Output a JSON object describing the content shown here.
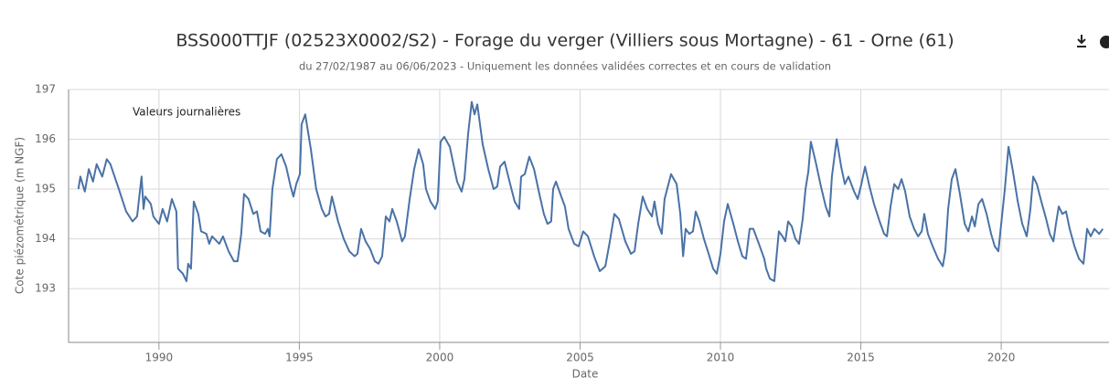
{
  "chart_data": {
    "type": "line",
    "title": "BSS000TTJF (02523X0002/S2) - Forage du verger (Villiers sous Mortagne) - 61 - Orne (61)",
    "subtitle": "du 27/02/1987 au 06/06/2023 - Uniquement les données validées correctes et en cours de validation",
    "annotation": "Valeurs journalières",
    "ylabel": "Cote piézométrique (m NGF)",
    "xlabel": "Date",
    "xlim": [
      1986.78,
      2023.84
    ],
    "xticks": [
      1990,
      1995,
      2000,
      2005,
      2010,
      2015,
      2020
    ],
    "ylim": [
      191.92,
      197
    ],
    "yticks": [
      193,
      194,
      195,
      196,
      197
    ],
    "grid": true,
    "series": [
      {
        "name": "Valeurs journalières",
        "color": "#4a72a6",
        "x": [
          1987.13,
          1987.2,
          1987.36,
          1987.5,
          1987.65,
          1987.78,
          1987.98,
          1988.14,
          1988.27,
          1988.57,
          1988.83,
          1989.06,
          1989.22,
          1989.38,
          1989.45,
          1989.51,
          1989.71,
          1989.8,
          1990.0,
          1990.13,
          1990.29,
          1990.46,
          1990.62,
          1990.68,
          1990.85,
          1990.98,
          1991.04,
          1991.14,
          1991.24,
          1991.4,
          1991.5,
          1991.69,
          1991.79,
          1991.89,
          1992.15,
          1992.28,
          1992.48,
          1992.67,
          1992.8,
          1992.93,
          1993.03,
          1993.19,
          1993.36,
          1993.49,
          1993.62,
          1993.78,
          1993.88,
          1993.94,
          1994.04,
          1994.2,
          1994.36,
          1994.53,
          1994.69,
          1994.79,
          1994.89,
          1995.02,
          1995.08,
          1995.21,
          1995.41,
          1995.6,
          1995.8,
          1995.93,
          1996.06,
          1996.16,
          1996.38,
          1996.58,
          1996.78,
          1996.97,
          1997.07,
          1997.2,
          1997.36,
          1997.52,
          1997.69,
          1997.82,
          1997.95,
          1998.08,
          1998.21,
          1998.31,
          1998.47,
          1998.66,
          1998.76,
          1998.93,
          1999.09,
          1999.25,
          1999.41,
          1999.51,
          1999.67,
          1999.84,
          1999.93,
          2000.03,
          2000.16,
          2000.36,
          2000.49,
          2000.62,
          2000.78,
          2000.88,
          2001.01,
          2001.14,
          2001.24,
          2001.34,
          2001.53,
          2001.73,
          2001.92,
          2002.05,
          2002.15,
          2002.31,
          2002.51,
          2002.67,
          2002.83,
          2002.9,
          2003.03,
          2003.19,
          2003.36,
          2003.55,
          2003.71,
          2003.84,
          2003.97,
          2004.04,
          2004.14,
          2004.33,
          2004.46,
          2004.59,
          2004.79,
          2004.95,
          2005.11,
          2005.28,
          2005.5,
          2005.7,
          2005.9,
          2006.06,
          2006.22,
          2006.38,
          2006.61,
          2006.81,
          2006.94,
          2007.07,
          2007.23,
          2007.39,
          2007.56,
          2007.65,
          2007.78,
          2007.91,
          2008.01,
          2008.24,
          2008.44,
          2008.57,
          2008.67,
          2008.76,
          2008.89,
          2009.02,
          2009.12,
          2009.25,
          2009.41,
          2009.58,
          2009.74,
          2009.87,
          2010.0,
          2010.13,
          2010.26,
          2010.46,
          2010.62,
          2010.78,
          2010.91,
          2011.04,
          2011.17,
          2011.37,
          2011.56,
          2011.63,
          2011.76,
          2011.92,
          2011.99,
          2012.08,
          2012.21,
          2012.31,
          2012.41,
          2012.54,
          2012.67,
          2012.8,
          2012.93,
          2013.03,
          2013.13,
          2013.22,
          2013.39,
          2013.58,
          2013.75,
          2013.88,
          2013.97,
          2014.14,
          2014.3,
          2014.43,
          2014.56,
          2014.76,
          2014.89,
          2015.02,
          2015.15,
          2015.31,
          2015.47,
          2015.67,
          2015.83,
          2015.93,
          2016.06,
          2016.19,
          2016.33,
          2016.45,
          2016.58,
          2016.74,
          2016.9,
          2017.04,
          2017.17,
          2017.26,
          2017.39,
          2017.56,
          2017.75,
          2017.92,
          2018.01,
          2018.11,
          2018.24,
          2018.37,
          2018.53,
          2018.7,
          2018.83,
          2018.96,
          2019.06,
          2019.19,
          2019.32,
          2019.48,
          2019.64,
          2019.77,
          2019.9,
          2020.0,
          2020.13,
          2020.26,
          2020.42,
          2020.59,
          2020.75,
          2020.91,
          2021.04,
          2021.14,
          2021.27,
          2021.43,
          2021.6,
          2021.73,
          2021.86,
          2021.95,
          2022.05,
          2022.18,
          2022.31,
          2022.44,
          2022.61,
          2022.77,
          2022.93,
          2023.06,
          2023.19,
          2023.32,
          2023.49,
          2023.62
        ],
        "values": [
          195.0,
          195.25,
          194.95,
          195.4,
          195.15,
          195.5,
          195.25,
          195.6,
          195.5,
          195.0,
          194.55,
          194.35,
          194.45,
          195.25,
          194.6,
          194.85,
          194.7,
          194.45,
          194.3,
          194.6,
          194.35,
          194.8,
          194.55,
          193.4,
          193.3,
          193.15,
          193.5,
          193.4,
          194.75,
          194.5,
          194.15,
          194.1,
          193.9,
          194.05,
          193.9,
          194.05,
          193.75,
          193.55,
          193.55,
          194.1,
          194.9,
          194.8,
          194.5,
          194.55,
          194.15,
          194.1,
          194.2,
          194.05,
          195.0,
          195.6,
          195.7,
          195.45,
          195.05,
          194.85,
          195.1,
          195.3,
          196.3,
          196.5,
          195.8,
          195.0,
          194.6,
          194.45,
          194.5,
          194.85,
          194.35,
          194.0,
          193.75,
          193.65,
          193.7,
          194.2,
          193.95,
          193.8,
          193.55,
          193.5,
          193.65,
          194.45,
          194.35,
          194.6,
          194.35,
          193.95,
          194.05,
          194.8,
          195.4,
          195.8,
          195.5,
          195.0,
          194.75,
          194.6,
          194.75,
          195.95,
          196.05,
          195.85,
          195.5,
          195.15,
          194.95,
          195.2,
          196.1,
          196.75,
          196.5,
          196.7,
          195.9,
          195.4,
          195.0,
          195.05,
          195.45,
          195.55,
          195.1,
          194.75,
          194.6,
          195.25,
          195.3,
          195.65,
          195.4,
          194.9,
          194.5,
          194.3,
          194.35,
          195.0,
          195.15,
          194.85,
          194.65,
          194.2,
          193.9,
          193.85,
          194.15,
          194.05,
          193.65,
          193.35,
          193.45,
          193.95,
          194.5,
          194.4,
          193.95,
          193.7,
          193.75,
          194.3,
          194.85,
          194.6,
          194.45,
          194.75,
          194.3,
          194.1,
          194.8,
          195.3,
          195.1,
          194.5,
          193.65,
          194.2,
          194.1,
          194.15,
          194.55,
          194.35,
          194.0,
          193.7,
          193.4,
          193.3,
          193.7,
          194.35,
          194.7,
          194.3,
          193.95,
          193.65,
          193.6,
          194.2,
          194.2,
          193.9,
          193.6,
          193.4,
          193.2,
          193.15,
          193.6,
          194.15,
          194.05,
          193.95,
          194.35,
          194.25,
          194.0,
          193.9,
          194.4,
          195.0,
          195.35,
          195.95,
          195.55,
          195.05,
          194.65,
          194.45,
          195.25,
          196.0,
          195.45,
          195.1,
          195.25,
          194.95,
          194.8,
          195.1,
          195.45,
          195.05,
          194.7,
          194.35,
          194.1,
          194.05,
          194.65,
          195.1,
          195.0,
          195.2,
          194.95,
          194.45,
          194.2,
          194.05,
          194.15,
          194.5,
          194.1,
          193.85,
          193.6,
          193.45,
          193.75,
          194.6,
          195.2,
          195.4,
          194.9,
          194.3,
          194.15,
          194.45,
          194.25,
          194.7,
          194.8,
          194.5,
          194.1,
          193.85,
          193.75,
          194.3,
          195.0,
          195.85,
          195.35,
          194.75,
          194.3,
          194.05,
          194.6,
          195.25,
          195.1,
          194.75,
          194.4,
          194.1,
          193.95,
          194.3,
          194.65,
          194.5,
          194.55,
          194.2,
          193.85,
          193.6,
          193.5,
          194.2,
          194.05,
          194.2,
          194.1,
          194.2
        ]
      }
    ]
  }
}
